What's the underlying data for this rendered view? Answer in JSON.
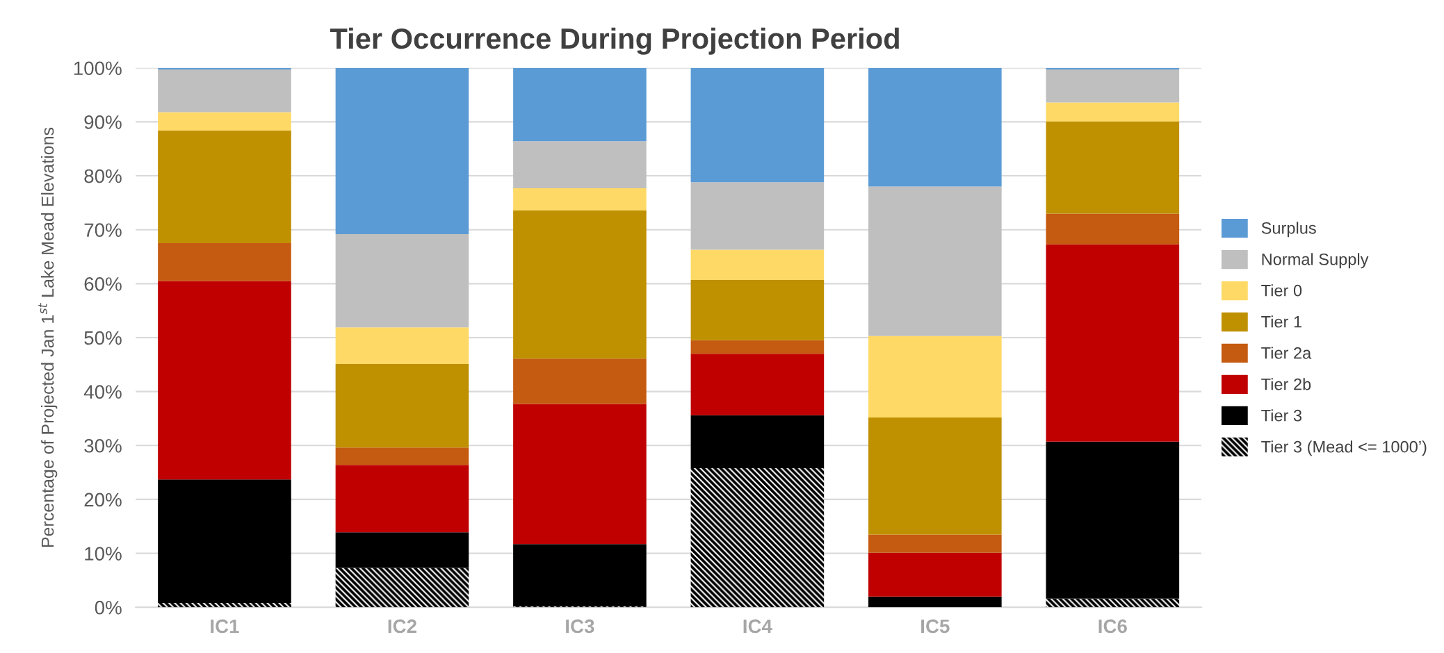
{
  "chart_data": {
    "type": "bar",
    "title": "Tier Occurrence During Projection Period",
    "ylabel": "Percentage of Projected Jan 1$^{st}$ Lake Mead Elevations",
    "categories": [
      "IC1",
      "IC2",
      "IC3",
      "IC4",
      "IC5",
      "IC6"
    ],
    "stacked": true,
    "series": [
      {
        "name": "Tier 3 (Mead <= 1000’)",
        "color": "#000000",
        "values": [
          0.8,
          7.3,
          0.2,
          25.8,
          0,
          1.6
        ]
      },
      {
        "name": "Tier 3",
        "color": "#000000",
        "values": [
          22.9,
          6.6,
          11.5,
          9.8,
          2.0,
          29.1
        ]
      },
      {
        "name": "Tier 2b",
        "color": "#c00000",
        "values": [
          36.8,
          12.5,
          26.0,
          11.4,
          8.1,
          36.6
        ]
      },
      {
        "name": "Tier 2a",
        "color": "#c55a11",
        "values": [
          7.0,
          3.2,
          8.4,
          2.5,
          3.4,
          5.7
        ]
      },
      {
        "name": "Tier 1",
        "color": "#bf9000",
        "values": [
          20.9,
          15.5,
          27.5,
          11.2,
          21.7,
          17.1
        ]
      },
      {
        "name": "Tier 0",
        "color": "#ffd966",
        "values": [
          3.4,
          6.8,
          4.1,
          5.6,
          15.1,
          3.5
        ]
      },
      {
        "name": "Normal Supply",
        "color": "#bfbfbf",
        "values": [
          7.9,
          17.3,
          8.7,
          12.5,
          27.7,
          6.1
        ]
      },
      {
        "name": "Surplus",
        "color": "#5b9bd5",
        "values": [
          0.3,
          30.8,
          13.6,
          21.2,
          22.0,
          0.3
        ]
      }
    ],
    "ylim": [
      0,
      100
    ],
    "yticks": [
      {
        "value": 0,
        "label": "0%"
      },
      {
        "value": 10,
        "label": "10%"
      },
      {
        "value": 20,
        "label": "20%"
      },
      {
        "value": 30,
        "label": "30%"
      },
      {
        "value": 40,
        "label": "40%"
      },
      {
        "value": 50,
        "label": "50%"
      },
      {
        "value": 60,
        "label": "60%"
      },
      {
        "value": 70,
        "label": "70%"
      },
      {
        "value": 80,
        "label": "80%"
      },
      {
        "value": 90,
        "label": "90%"
      },
      {
        "value": 100,
        "label": "100%"
      }
    ],
    "grid": "y",
    "legend": "right"
  }
}
